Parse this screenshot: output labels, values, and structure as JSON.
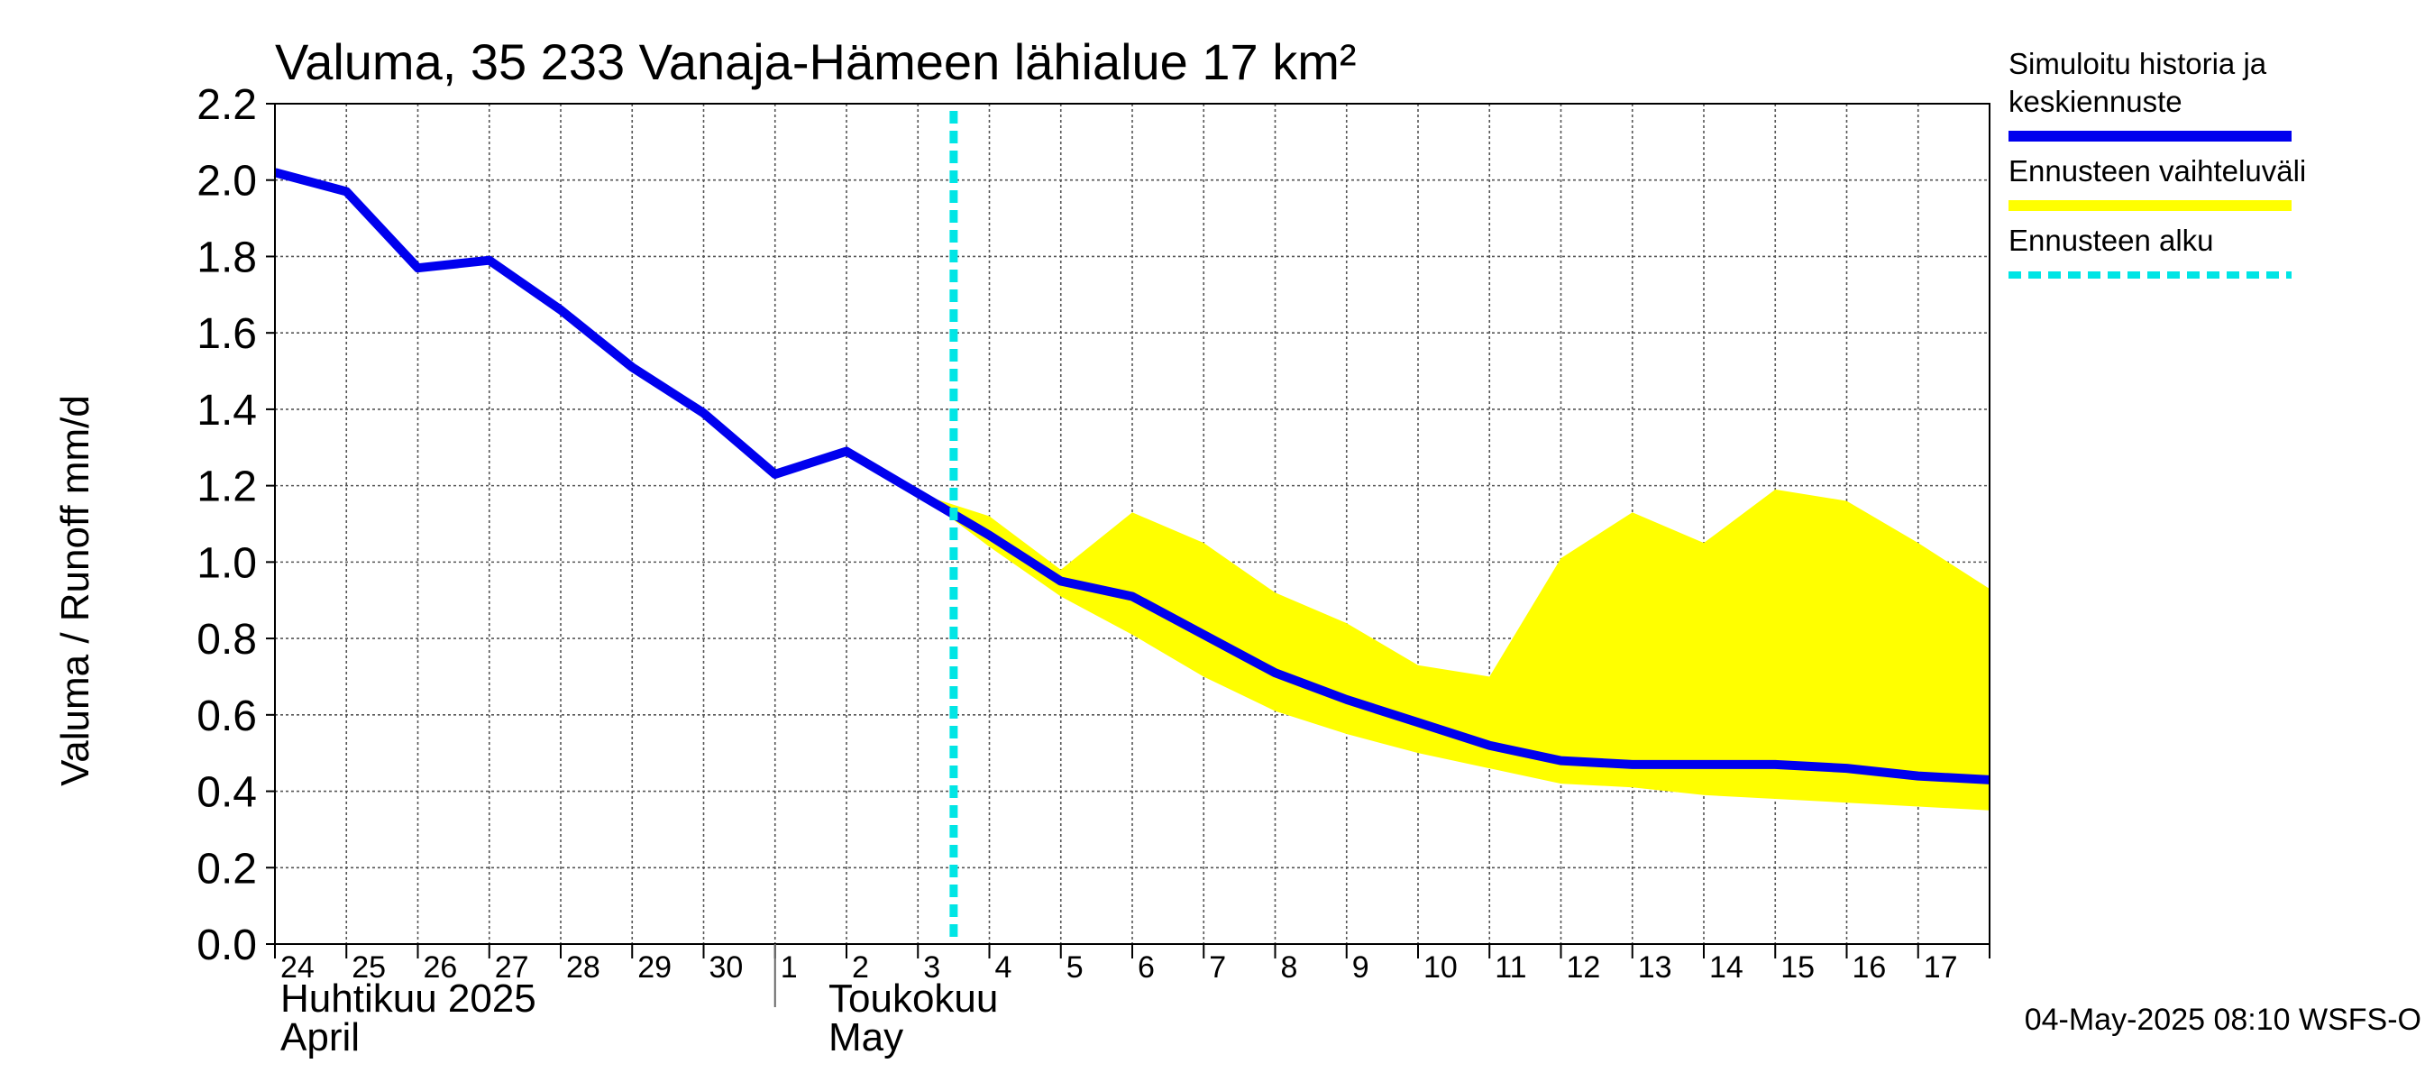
{
  "chart_data": {
    "type": "area",
    "title": "Valuma, 35 233 Vanaja-Hämeen lähialue 17 km²",
    "ylabel": "Valuma / Runoff     mm/d",
    "ylim": [
      0.0,
      2.2
    ],
    "yticks": [
      "0.0",
      "0.2",
      "0.4",
      "0.6",
      "0.8",
      "1.0",
      "1.2",
      "1.4",
      "1.6",
      "1.8",
      "2.0",
      "2.2"
    ],
    "x_start": "2025-04-24",
    "x_end": "2025-05-18",
    "x_tick_labels": [
      "24",
      "25",
      "26",
      "27",
      "28",
      "29",
      "30",
      "1",
      "2",
      "3",
      "4",
      "5",
      "6",
      "7",
      "8",
      "9",
      "10",
      "11",
      "12",
      "13",
      "14",
      "15",
      "16",
      "17"
    ],
    "month_labels": [
      {
        "fi": "Huhtikuu  2025",
        "en": "April"
      },
      {
        "fi": "Toukokuu",
        "en": "May"
      }
    ],
    "grid": true,
    "forecast_start": "2025-05-04",
    "series": [
      {
        "name": "Simuloitu historia ja keskiennuste",
        "color": "#0000ee",
        "x": [
          "2025-04-24",
          "2025-04-25",
          "2025-04-26",
          "2025-04-27",
          "2025-04-28",
          "2025-04-29",
          "2025-04-30",
          "2025-05-01",
          "2025-05-02",
          "2025-05-03",
          "2025-05-04",
          "2025-05-05",
          "2025-05-06",
          "2025-05-07",
          "2025-05-08",
          "2025-05-09",
          "2025-05-10",
          "2025-05-11",
          "2025-05-12",
          "2025-05-13",
          "2025-05-14",
          "2025-05-15",
          "2025-05-16",
          "2025-05-17",
          "2025-05-18"
        ],
        "values": [
          2.02,
          1.97,
          1.77,
          1.79,
          1.66,
          1.51,
          1.39,
          1.23,
          1.29,
          1.18,
          1.07,
          0.95,
          0.91,
          0.81,
          0.71,
          0.64,
          0.58,
          0.52,
          0.48,
          0.47,
          0.47,
          0.47,
          0.46,
          0.44,
          0.43
        ]
      },
      {
        "name": "Ennusteen vaihteluväli",
        "color": "#ffff00",
        "x": [
          "2025-05-03",
          "2025-05-04",
          "2025-05-05",
          "2025-05-06",
          "2025-05-07",
          "2025-05-08",
          "2025-05-09",
          "2025-05-10",
          "2025-05-11",
          "2025-05-12",
          "2025-05-13",
          "2025-05-14",
          "2025-05-15",
          "2025-05-16",
          "2025-05-17",
          "2025-05-18"
        ],
        "upper": [
          1.18,
          1.12,
          0.98,
          1.13,
          1.05,
          0.92,
          0.84,
          0.73,
          0.7,
          1.01,
          1.13,
          1.05,
          1.19,
          1.16,
          1.05,
          0.93
        ],
        "lower": [
          1.18,
          1.04,
          0.91,
          0.81,
          0.7,
          0.61,
          0.55,
          0.5,
          0.46,
          0.42,
          0.41,
          0.39,
          0.38,
          0.37,
          0.36,
          0.35
        ]
      }
    ],
    "legend": [
      {
        "label_lines": [
          "Simuloitu historia ja",
          "keskiennuste"
        ],
        "color": "#0000ee",
        "style": "solid"
      },
      {
        "label_lines": [
          "Ennusteen vaihteluväli"
        ],
        "color": "#ffff00",
        "style": "solid"
      },
      {
        "label_lines": [
          "Ennusteen alku"
        ],
        "color": "#00e5e5",
        "style": "dashed"
      }
    ],
    "legend_position": "right",
    "footer": "04-May-2025 08:10 WSFS-O"
  }
}
